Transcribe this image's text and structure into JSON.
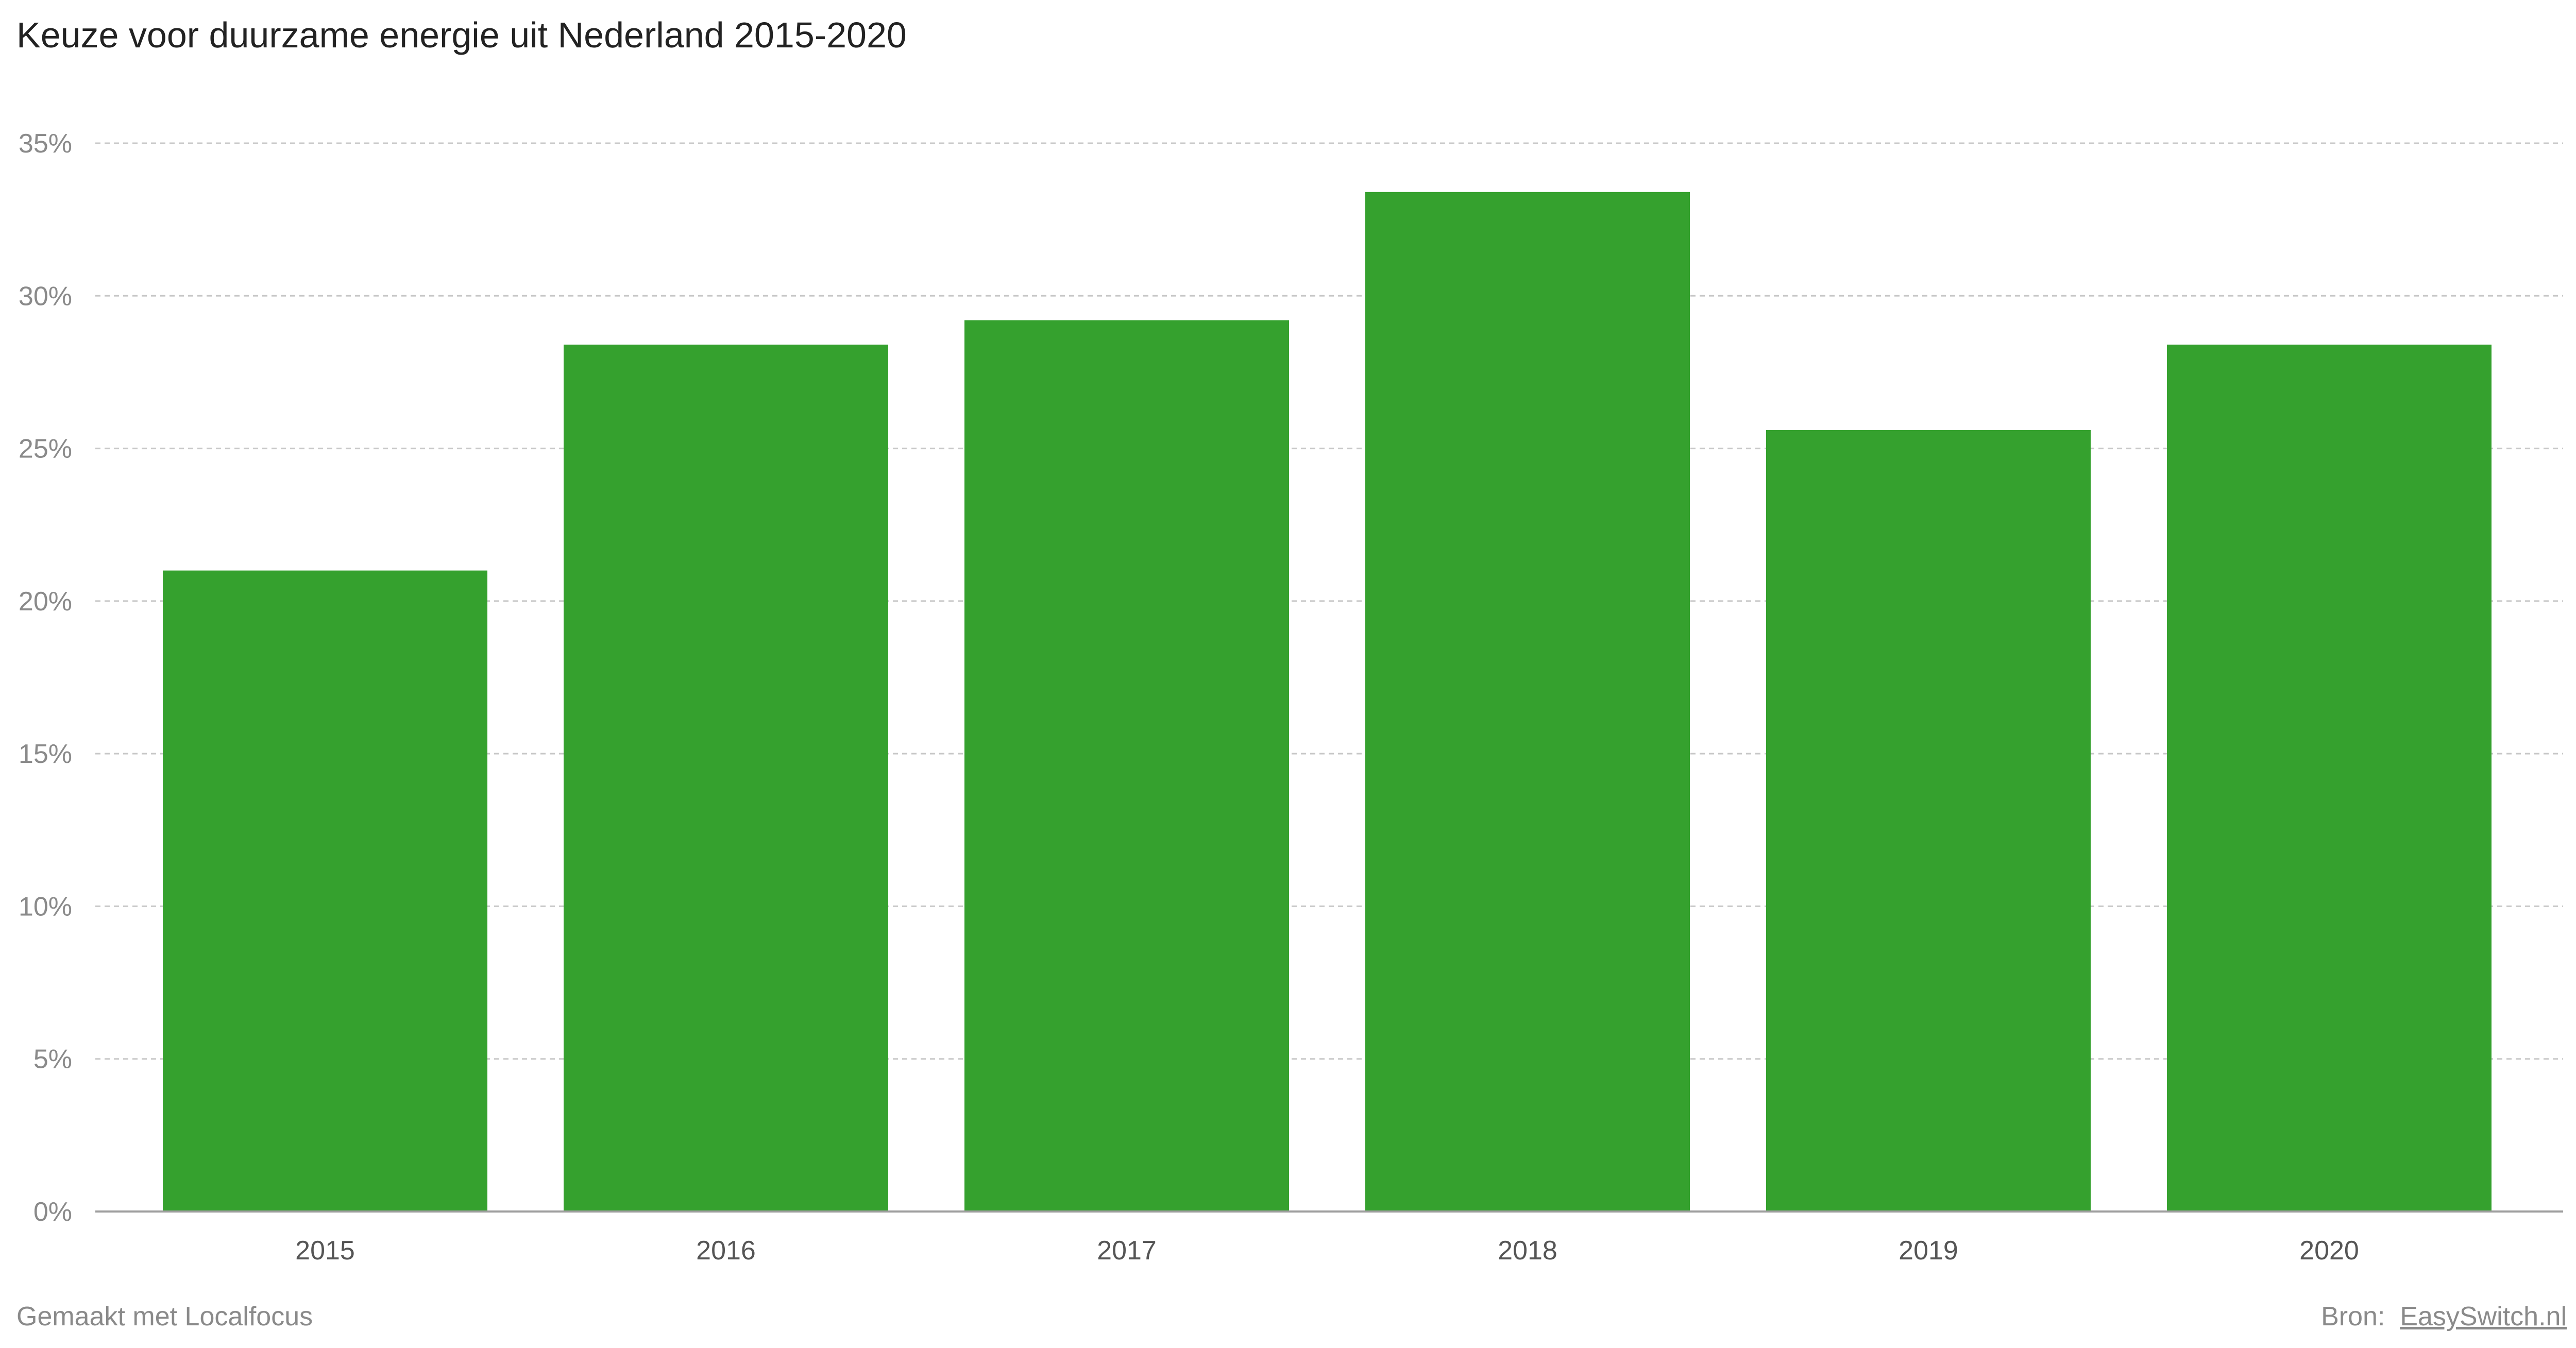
{
  "chart_data": {
    "type": "bar",
    "title": "Keuze voor duurzame energie uit Nederland 2015-2020",
    "categories": [
      "2015",
      "2016",
      "2017",
      "2018",
      "2019",
      "2020"
    ],
    "values": [
      21.0,
      28.4,
      29.2,
      33.4,
      25.6,
      28.4
    ],
    "xlabel": "",
    "ylabel": "",
    "ylim": [
      0,
      35
    ],
    "yticks": [
      0,
      5,
      10,
      15,
      20,
      25,
      30,
      35
    ],
    "ytick_labels": [
      "0%",
      "5%",
      "10%",
      "15%",
      "20%",
      "25%",
      "30%",
      "35%"
    ],
    "grid": true,
    "bar_color": "#35a12e"
  },
  "footer": {
    "credit": "Gemaakt met Localfocus",
    "source_prefix": "Bron:",
    "source_link": "EasySwitch.nl"
  }
}
